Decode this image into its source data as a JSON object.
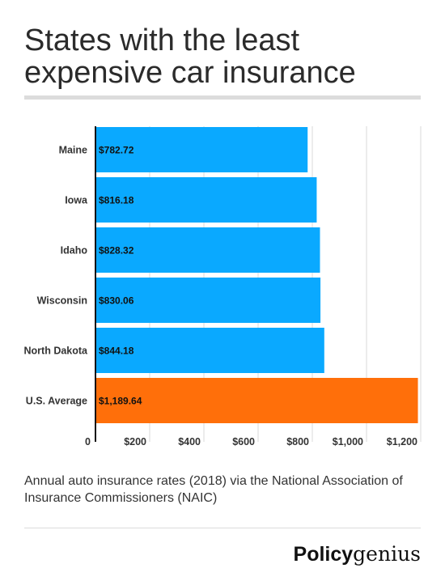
{
  "title": "States with the least expensive car insurance",
  "caption": "Annual auto insurance rates (2018) via the National Association of Insurance Commissioners (NAIC)",
  "logo": {
    "part1": "Policy",
    "part2": "genius"
  },
  "colors": {
    "bar": "#0aa9ff",
    "highlight": "#ff6f0a",
    "grid": "#d9d9d9",
    "axis": "#111111"
  },
  "chart_data": {
    "type": "bar",
    "orientation": "horizontal",
    "categories": [
      "Maine",
      "Iowa",
      "Idaho",
      "Wisconsin",
      "North Dakota",
      "U.S. Average"
    ],
    "values": [
      782.72,
      816.18,
      828.32,
      830.06,
      844.18,
      1189.64
    ],
    "value_labels": [
      "$782.72",
      "$816.18",
      "$828.32",
      "$830.06",
      "$844.18",
      "$1,189.64"
    ],
    "highlight_index": 5,
    "xlim": [
      0,
      1200
    ],
    "xticks": [
      0,
      200,
      400,
      600,
      800,
      1000,
      1200
    ],
    "xtick_labels": [
      "0",
      "$200",
      "$400",
      "$600",
      "$800",
      "$1,000",
      "$1,200"
    ],
    "grid": true,
    "title": "",
    "xlabel": "",
    "ylabel": ""
  }
}
